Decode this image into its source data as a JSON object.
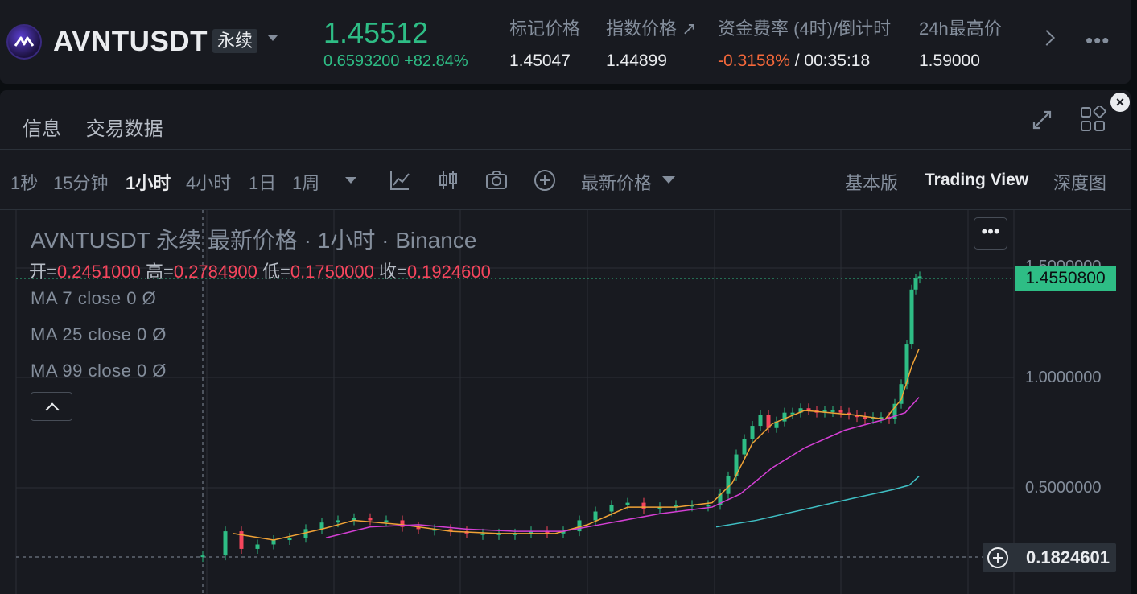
{
  "header": {
    "symbol": "AVNTUSDT",
    "contract_type": "永续",
    "last_price": "1.45512",
    "change_abs": "0.6593200",
    "change_pct": "+82.84%",
    "stats": [
      {
        "label": "标记价格",
        "value": "1.45047"
      },
      {
        "label": "指数价格 ↗",
        "value": "1.44899"
      },
      {
        "label": "资金费率 (4时)/倒计时",
        "value_rate": "-0.3158%",
        "value_sep": " / ",
        "value_countdown": "00:35:18"
      },
      {
        "label": "24h最高价",
        "value": "1.59000"
      }
    ]
  },
  "panel": {
    "tabs": [
      "信息",
      "交易数据"
    ],
    "close_icon": "×"
  },
  "toolbar": {
    "intervals": [
      "1秒",
      "15分钟",
      "1小时",
      "4小时",
      "1日",
      "1周"
    ],
    "active_interval": "1小时",
    "price_type": "最新价格",
    "views": [
      "基本版",
      "Trading View",
      "深度图"
    ],
    "active_view": "Trading View"
  },
  "chart": {
    "title": "AVNTUSDT 永续 最新价格 · 1小时 · Binance",
    "ohlc": {
      "open_label": "开=",
      "open": "0.2451000",
      "high_label": "高=",
      "high": "0.2784900",
      "low_label": "低=",
      "low": "0.1750000",
      "close_label": "收=",
      "close": "0.1924600"
    },
    "ma": [
      "MA 7 close 0  Ø",
      "MA 25 close 0  Ø",
      "MA 99 close 0  Ø"
    ],
    "price_label": "1.4550800",
    "y_ticks": [
      "1.5000000",
      "1.0000000",
      "0.5000000"
    ],
    "crosshair_value": "0.1824601",
    "more": "•••"
  },
  "colors": {
    "up": "#2ebd85",
    "down": "#f6465d",
    "ma7": "#f0a236",
    "ma25": "#d43fd4",
    "ma99": "#3fbfc4"
  }
}
